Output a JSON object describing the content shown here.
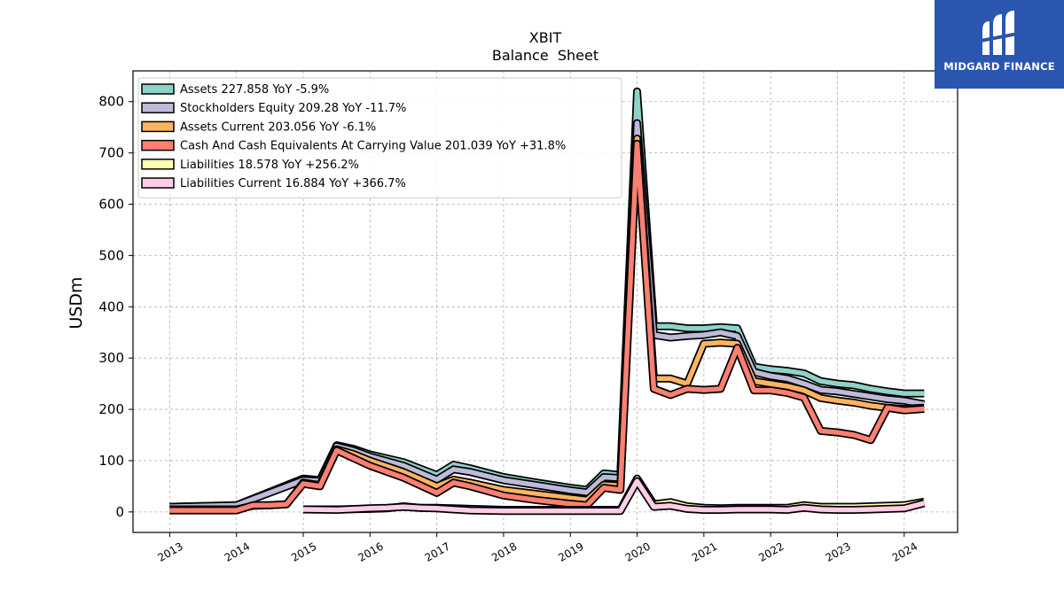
{
  "title": "XBIT",
  "subtitle": "Balance  Sheet",
  "logo": {
    "text": "MIDGARD FINANCE",
    "color": "#2b56b0"
  },
  "chart_data": {
    "type": "line",
    "title": "XBIT",
    "subtitle": "Balance  Sheet",
    "xlabel": "",
    "ylabel": "USDm",
    "xlim": [
      2012.45,
      2024.8
    ],
    "ylim": [
      -40,
      860
    ],
    "xticks": [
      "2013",
      "2014",
      "2015",
      "2016",
      "2017",
      "2018",
      "2019",
      "2020",
      "2021",
      "2022",
      "2023",
      "2024"
    ],
    "yticks": [
      0,
      100,
      200,
      300,
      400,
      500,
      600,
      700,
      800
    ],
    "grid": true,
    "legend_position": "top-left",
    "series": [
      {
        "name": "Assets",
        "legend_label": "Assets  227.858 YoY -5.9%",
        "color": "#8dd3c7",
        "points": [
          [
            2013,
            10
          ],
          [
            2014,
            13
          ],
          [
            2015,
            65
          ],
          [
            2015.25,
            62
          ],
          [
            2015.5,
            130
          ],
          [
            2015.75,
            123
          ],
          [
            2016,
            112
          ],
          [
            2016.5,
            97
          ],
          [
            2017,
            72
          ],
          [
            2017.25,
            92
          ],
          [
            2017.5,
            85
          ],
          [
            2018,
            68
          ],
          [
            2018.5,
            57
          ],
          [
            2019,
            47
          ],
          [
            2019.25,
            43
          ],
          [
            2019.5,
            75
          ],
          [
            2019.75,
            72
          ],
          [
            2020,
            820
          ],
          [
            2020.25,
            362
          ],
          [
            2020.5,
            362
          ],
          [
            2020.75,
            358
          ],
          [
            2021,
            358
          ],
          [
            2021.25,
            360
          ],
          [
            2021.5,
            358
          ],
          [
            2021.75,
            283
          ],
          [
            2022,
            278
          ],
          [
            2022.25,
            275
          ],
          [
            2022.5,
            270
          ],
          [
            2022.75,
            255
          ],
          [
            2023,
            250
          ],
          [
            2023.25,
            247
          ],
          [
            2023.5,
            240
          ],
          [
            2023.75,
            235
          ],
          [
            2024,
            231
          ],
          [
            2024.3,
            231
          ]
        ]
      },
      {
        "name": "Stockholders Equity",
        "legend_label": "Stockholders Equity  209.28 YoY -11.7%",
        "color": "#bebada",
        "points": [
          [
            2013,
            10
          ],
          [
            2014,
            13
          ],
          [
            2015,
            62
          ],
          [
            2015.25,
            60
          ],
          [
            2015.5,
            128
          ],
          [
            2015.75,
            120
          ],
          [
            2016,
            108
          ],
          [
            2016.5,
            90
          ],
          [
            2017,
            63
          ],
          [
            2017.25,
            83
          ],
          [
            2017.5,
            78
          ],
          [
            2018,
            62
          ],
          [
            2018.5,
            52
          ],
          [
            2019,
            42
          ],
          [
            2019.25,
            38
          ],
          [
            2019.5,
            68
          ],
          [
            2019.75,
            66
          ],
          [
            2020,
            758
          ],
          [
            2020.25,
            345
          ],
          [
            2020.5,
            340
          ],
          [
            2020.75,
            343
          ],
          [
            2021,
            345
          ],
          [
            2021.25,
            350
          ],
          [
            2021.5,
            343
          ],
          [
            2021.75,
            273
          ],
          [
            2022,
            265
          ],
          [
            2022.25,
            260
          ],
          [
            2022.5,
            250
          ],
          [
            2022.75,
            238
          ],
          [
            2023,
            235
          ],
          [
            2023.25,
            230
          ],
          [
            2023.5,
            225
          ],
          [
            2023.75,
            220
          ],
          [
            2024,
            217
          ],
          [
            2024.3,
            210
          ]
        ]
      },
      {
        "name": "Assets Current",
        "legend_label": "Assets Current  203.056 YoY -6.1%",
        "color": "#fdb462",
        "points": [
          [
            2013,
            5
          ],
          [
            2014,
            5
          ],
          [
            2014.25,
            12
          ],
          [
            2014.5,
            13
          ],
          [
            2014.75,
            15
          ],
          [
            2015,
            57
          ],
          [
            2015.25,
            52
          ],
          [
            2015.5,
            122
          ],
          [
            2015.75,
            113
          ],
          [
            2016,
            100
          ],
          [
            2016.5,
            78
          ],
          [
            2017,
            50
          ],
          [
            2017.25,
            63
          ],
          [
            2017.5,
            57
          ],
          [
            2018,
            43
          ],
          [
            2018.5,
            35
          ],
          [
            2019,
            27
          ],
          [
            2019.25,
            23
          ],
          [
            2019.5,
            53
          ],
          [
            2019.75,
            51
          ],
          [
            2020,
            728
          ],
          [
            2020.25,
            260
          ],
          [
            2020.5,
            260
          ],
          [
            2020.75,
            250
          ],
          [
            2021,
            328
          ],
          [
            2021.25,
            330
          ],
          [
            2021.5,
            328
          ],
          [
            2021.75,
            255
          ],
          [
            2022,
            250
          ],
          [
            2022.25,
            245
          ],
          [
            2022.5,
            237
          ],
          [
            2022.75,
            222
          ],
          [
            2023,
            217
          ],
          [
            2023.25,
            213
          ],
          [
            2023.5,
            207
          ],
          [
            2023.75,
            203
          ],
          [
            2024,
            201
          ],
          [
            2024.3,
            203
          ]
        ]
      },
      {
        "name": "Cash And Cash Equivalents At Carrying Value",
        "legend_label": "Cash And Cash Equivalents At Carrying Value  201.039 YoY +31.8%",
        "color": "#fb8072",
        "points": [
          [
            2013,
            3
          ],
          [
            2014,
            3
          ],
          [
            2014.25,
            13
          ],
          [
            2014.5,
            13
          ],
          [
            2014.75,
            15
          ],
          [
            2015,
            55
          ],
          [
            2015.25,
            50
          ],
          [
            2015.5,
            120
          ],
          [
            2015.75,
            105
          ],
          [
            2016,
            90
          ],
          [
            2016.5,
            67
          ],
          [
            2017,
            37
          ],
          [
            2017.25,
            57
          ],
          [
            2017.5,
            50
          ],
          [
            2018,
            32
          ],
          [
            2018.5,
            23
          ],
          [
            2019,
            16
          ],
          [
            2019.25,
            13
          ],
          [
            2019.5,
            47
          ],
          [
            2019.75,
            43
          ],
          [
            2020,
            718
          ],
          [
            2020.25,
            240
          ],
          [
            2020.5,
            228
          ],
          [
            2020.75,
            240
          ],
          [
            2021,
            238
          ],
          [
            2021.25,
            240
          ],
          [
            2021.5,
            320
          ],
          [
            2021.75,
            237
          ],
          [
            2022,
            237
          ],
          [
            2022.25,
            232
          ],
          [
            2022.5,
            223
          ],
          [
            2022.75,
            158
          ],
          [
            2023,
            155
          ],
          [
            2023.25,
            150
          ],
          [
            2023.5,
            140
          ],
          [
            2023.75,
            203
          ],
          [
            2024,
            198
          ],
          [
            2024.3,
            201
          ]
        ]
      },
      {
        "name": "Liabilities",
        "legend_label": "Liabilities  18.578 YoY +256.2%",
        "color": "#ffffb3",
        "points": [
          [
            2015,
            5
          ],
          [
            2015.5,
            5
          ],
          [
            2016,
            6
          ],
          [
            2016.25,
            7
          ],
          [
            2016.5,
            11
          ],
          [
            2016.75,
            8
          ],
          [
            2017,
            8
          ],
          [
            2017.25,
            7
          ],
          [
            2017.5,
            6
          ],
          [
            2018,
            4
          ],
          [
            2018.5,
            4
          ],
          [
            2019,
            4
          ],
          [
            2019.5,
            4
          ],
          [
            2019.75,
            4
          ],
          [
            2020,
            65
          ],
          [
            2020.25,
            15
          ],
          [
            2020.5,
            19
          ],
          [
            2020.75,
            11
          ],
          [
            2021,
            8
          ],
          [
            2021.25,
            7
          ],
          [
            2021.5,
            8
          ],
          [
            2021.75,
            8
          ],
          [
            2022,
            8
          ],
          [
            2022.25,
            8
          ],
          [
            2022.5,
            13
          ],
          [
            2022.75,
            10
          ],
          [
            2023,
            10
          ],
          [
            2023.25,
            10
          ],
          [
            2023.5,
            11
          ],
          [
            2023.75,
            12
          ],
          [
            2024,
            13
          ],
          [
            2024.3,
            20
          ]
        ]
      },
      {
        "name": "Liabilities Current",
        "legend_label": "Liabilities Current  16.884 YoY +366.7%",
        "color": "#fccde5",
        "points": [
          [
            2015,
            5
          ],
          [
            2015.5,
            4
          ],
          [
            2016,
            7
          ],
          [
            2016.25,
            8
          ],
          [
            2016.5,
            10
          ],
          [
            2016.75,
            8
          ],
          [
            2017,
            7
          ],
          [
            2017.25,
            5
          ],
          [
            2017.5,
            3
          ],
          [
            2018,
            2
          ],
          [
            2018.5,
            2
          ],
          [
            2019,
            2
          ],
          [
            2019.5,
            2
          ],
          [
            2019.75,
            2
          ],
          [
            2020,
            60
          ],
          [
            2020.25,
            10
          ],
          [
            2020.5,
            12
          ],
          [
            2020.75,
            6
          ],
          [
            2021,
            4
          ],
          [
            2021.25,
            4
          ],
          [
            2021.5,
            5
          ],
          [
            2021.75,
            5
          ],
          [
            2022,
            5
          ],
          [
            2022.25,
            4
          ],
          [
            2022.5,
            8
          ],
          [
            2022.75,
            5
          ],
          [
            2023,
            4
          ],
          [
            2023.25,
            4
          ],
          [
            2023.5,
            5
          ],
          [
            2023.75,
            6
          ],
          [
            2024,
            7
          ],
          [
            2024.3,
            17
          ]
        ]
      }
    ]
  }
}
